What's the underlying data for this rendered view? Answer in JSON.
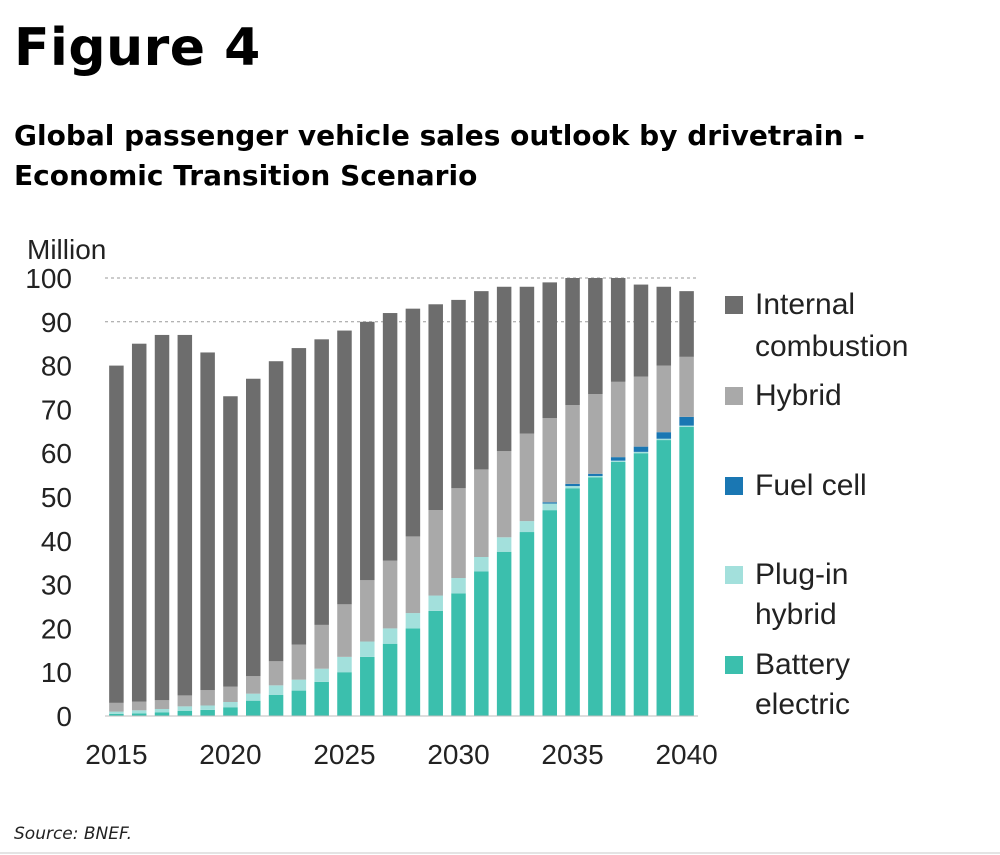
{
  "figure_label": "Figure 4",
  "title_line1": "Global passenger vehicle sales outlook by drivetrain  -",
  "title_line2": "Economic Transition Scenario",
  "source": "Source: BNEF.",
  "colors": {
    "internal_combustion": "#6d6d6d",
    "hybrid": "#a9a9a9",
    "fuel_cell": "#1a77b3",
    "plug_in_hybrid": "#a3e0dc",
    "battery_electric": "#3bbfad",
    "gridline": "#9a9a9a"
  },
  "chart_data": {
    "type": "bar",
    "stacked": true,
    "ylabel": "Million",
    "ylim": [
      0,
      100
    ],
    "yticks": [
      0,
      10,
      20,
      30,
      40,
      50,
      60,
      70,
      80,
      90,
      100
    ],
    "xtick_labels": [
      "2015",
      "2020",
      "2025",
      "2030",
      "2035",
      "2040"
    ],
    "grid": "horizontal dashed at 90 and 100",
    "legend_position": "right",
    "categories": [
      2015,
      2016,
      2017,
      2018,
      2019,
      2020,
      2021,
      2022,
      2023,
      2024,
      2025,
      2026,
      2027,
      2028,
      2029,
      2030,
      2031,
      2032,
      2033,
      2034,
      2035,
      2036,
      2037,
      2038,
      2039,
      2040
    ],
    "series": [
      {
        "name": "Battery\nelectric",
        "key": "battery_electric",
        "values": [
          0.5,
          0.6,
          0.8,
          1.2,
          1.4,
          2.0,
          3.5,
          4.8,
          5.8,
          7.8,
          10.0,
          13.5,
          16.5,
          20.0,
          24.0,
          28.0,
          33.0,
          37.5,
          42.0,
          47.0,
          52.0,
          54.5,
          58.0,
          60.0,
          63.0,
          66.0
        ]
      },
      {
        "name": "Plug-in\nhybrid",
        "key": "plug_in_hybrid",
        "values": [
          0.5,
          0.7,
          0.8,
          1.0,
          1.0,
          1.2,
          1.6,
          2.2,
          2.5,
          3.0,
          3.5,
          3.5,
          3.5,
          3.5,
          3.5,
          3.5,
          3.3,
          3.3,
          2.5,
          1.5,
          0.5,
          0.3,
          0.3,
          0.3,
          0.3,
          0.3
        ]
      },
      {
        "name": "Fuel cell",
        "key": "fuel_cell",
        "values": [
          0,
          0,
          0,
          0,
          0,
          0,
          0,
          0,
          0,
          0,
          0,
          0,
          0,
          0,
          0,
          0,
          0,
          0,
          0,
          0.3,
          0.5,
          0.5,
          0.8,
          1.2,
          1.5,
          2.0
        ]
      },
      {
        "name": "Hybrid",
        "key": "hybrid",
        "values": [
          2.0,
          2.0,
          2.0,
          2.5,
          3.5,
          3.5,
          4.0,
          5.5,
          8.0,
          10.0,
          12.0,
          14.0,
          15.5,
          17.5,
          19.5,
          20.5,
          20.0,
          19.7,
          20.0,
          19.2,
          18.0,
          18.2,
          17.2,
          16.0,
          15.2,
          13.7
        ]
      },
      {
        "name": "Internal\ncombustion",
        "key": "internal_combustion",
        "values": [
          77.0,
          81.7,
          83.4,
          82.3,
          77.1,
          66.3,
          67.9,
          68.5,
          67.7,
          65.2,
          62.5,
          59.0,
          56.5,
          52.0,
          47.0,
          43.0,
          40.7,
          37.5,
          33.5,
          31.0,
          29.0,
          26.5,
          23.7,
          21.0,
          18.0,
          15.0
        ]
      }
    ]
  }
}
